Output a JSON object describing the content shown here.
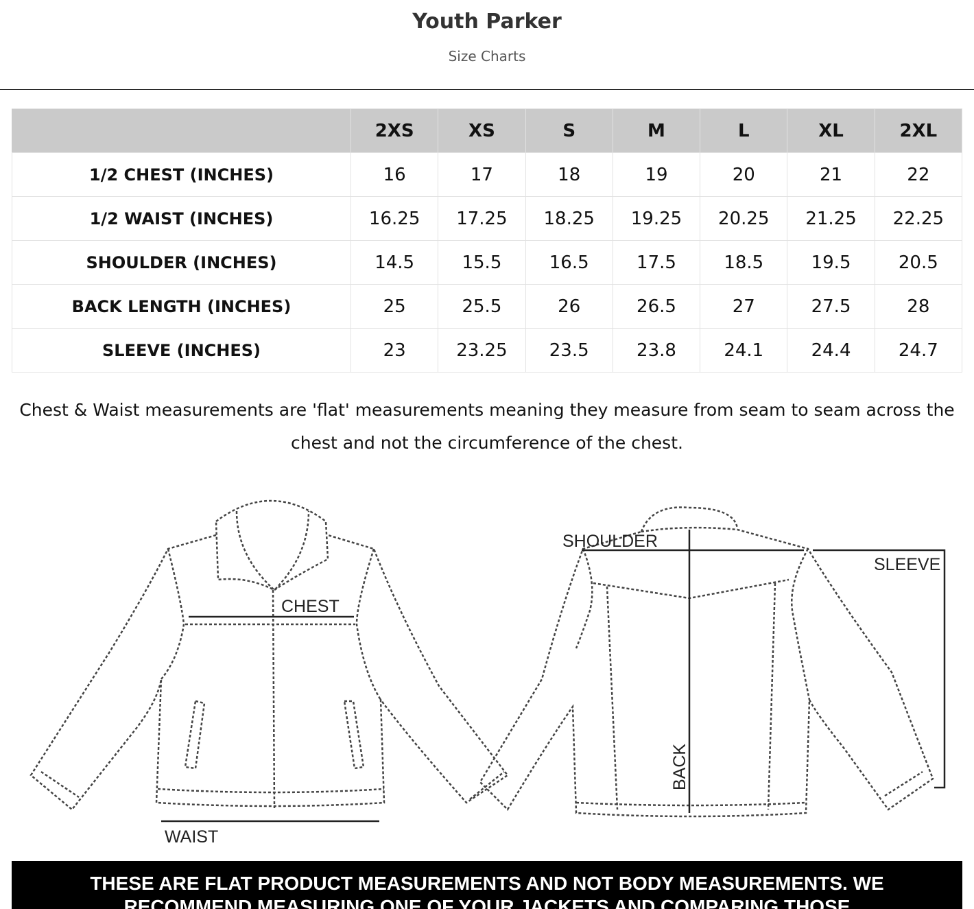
{
  "header": {
    "title": "Youth Parker",
    "subtitle": "Size Charts"
  },
  "table": {
    "columns": [
      "",
      "2XS",
      "XS",
      "S",
      "M",
      "L",
      "XL",
      "2XL"
    ],
    "rows": [
      {
        "label": "1/2 CHEST (INCHES)",
        "values": [
          "16",
          "17",
          "18",
          "19",
          "20",
          "21",
          "22"
        ]
      },
      {
        "label": "1/2 WAIST (INCHES)",
        "values": [
          "16.25",
          "17.25",
          "18.25",
          "19.25",
          "20.25",
          "21.25",
          "22.25"
        ]
      },
      {
        "label": "SHOULDER (INCHES)",
        "values": [
          "14.5",
          "15.5",
          "16.5",
          "17.5",
          "18.5",
          "19.5",
          "20.5"
        ]
      },
      {
        "label": "BACK LENGTH (INCHES)",
        "values": [
          "25",
          "25.5",
          "26",
          "26.5",
          "27",
          "27.5",
          "28"
        ]
      },
      {
        "label": "SLEEVE (INCHES)",
        "values": [
          "23",
          "23.25",
          "23.5",
          "23.8",
          "24.1",
          "24.4",
          "24.7"
        ]
      }
    ]
  },
  "note": "Chest & Waist measurements are 'flat' measurements meaning they measure from seam to seam across the chest and not the circumference of the chest.",
  "diagram": {
    "chest": "CHEST",
    "waist": "WAIST",
    "shoulder": "SHOULDER",
    "sleeve": "SLEEVE",
    "back": "BACK"
  },
  "banner": {
    "line1": "THESE ARE FLAT PRODUCT MEASUREMENTS AND NOT BODY MEASUREMENTS. WE",
    "line2": "RECOMMEND MEASURING ONE OF YOUR JACKETS AND COMPARING THOSE"
  }
}
